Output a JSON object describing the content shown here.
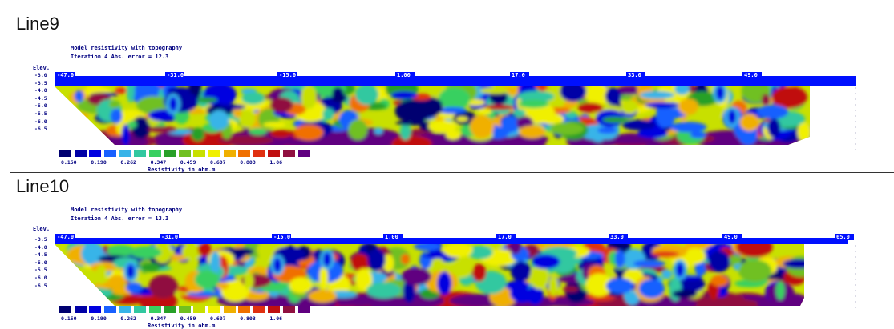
{
  "colors": {
    "scale": [
      "#000070",
      "#0000a6",
      "#0000e0",
      "#1860ff",
      "#38b4e8",
      "#32c8a0",
      "#38d060",
      "#28a028",
      "#70c020",
      "#c8e000",
      "#f0f000",
      "#f0b000",
      "#f07000",
      "#e03010",
      "#c01010",
      "#901040",
      "#600080"
    ],
    "topo_bar": "#0010ff"
  },
  "panels": [
    {
      "name": "line9",
      "title": "Line9",
      "header_1": "Model resistivity with topography",
      "header_2": "Iteration 4 Abs. error = 12.3",
      "elev_label": "Elev.",
      "depth_ticks": [
        "-3.0",
        "-3.5",
        "-4.0",
        "-4.5",
        "-5.0",
        "-5.5",
        "-6.0",
        "-6.5"
      ],
      "distance_labels": [
        "-47.0",
        "-31.0",
        "-15.0",
        "1.00",
        "17.0",
        "33.0",
        "49.0"
      ],
      "scale_values": [
        "0.150",
        "0.190",
        "0.262",
        "0.347",
        "0.459",
        "0.607",
        "0.803",
        "1.06"
      ],
      "resistivity_label": "Resistivity in ohm.m"
    },
    {
      "name": "line10",
      "title": "Line10",
      "header_1": "Model resistivity with topography",
      "header_2": "Iteration 4 Abs. error = 13.3",
      "elev_label": "Elev.",
      "depth_ticks": [
        "-3.5",
        "-4.0",
        "-4.5",
        "-5.0",
        "-5.5",
        "-6.0",
        "-6.5"
      ],
      "distance_labels": [
        "-47.0",
        "-31.0",
        "-15.0",
        "1.00",
        "17.0",
        "33.0",
        "49.0",
        "65.0"
      ],
      "scale_values": [
        "0.150",
        "0.190",
        "0.262",
        "0.347",
        "0.459",
        "0.607",
        "0.803",
        "1.06"
      ],
      "resistivity_label": "Resistivity in ohm.m"
    }
  ],
  "chart_data": [
    {
      "type": "heatmap",
      "title": "Model resistivity with topography",
      "subtitle": "Iteration 4 Abs. error = 12.3",
      "xlabel": "",
      "ylabel": "Elev.",
      "x_ticks": [
        -47,
        -31,
        -15,
        1,
        17,
        33,
        49
      ],
      "y_ticks": [
        -3.0,
        -3.5,
        -4.0,
        -4.5,
        -5.0,
        -5.5,
        -6.0,
        -6.5
      ],
      "color_scale_values": [
        0.15,
        0.19,
        0.262,
        0.347,
        0.459,
        0.607,
        0.803,
        1.06
      ],
      "color_scale_label": "Resistivity in ohm.m"
    },
    {
      "type": "heatmap",
      "title": "Model resistivity with topography",
      "subtitle": "Iteration 4 Abs. error = 13.3",
      "xlabel": "",
      "ylabel": "Elev.",
      "x_ticks": [
        -47,
        -31,
        -15,
        1,
        17,
        33,
        49,
        65
      ],
      "y_ticks": [
        -3.5,
        -4.0,
        -4.5,
        -5.0,
        -5.5,
        -6.0,
        -6.5
      ],
      "color_scale_values": [
        0.15,
        0.19,
        0.262,
        0.347,
        0.459,
        0.607,
        0.803,
        1.06
      ],
      "color_scale_label": "Resistivity in ohm.m"
    }
  ]
}
